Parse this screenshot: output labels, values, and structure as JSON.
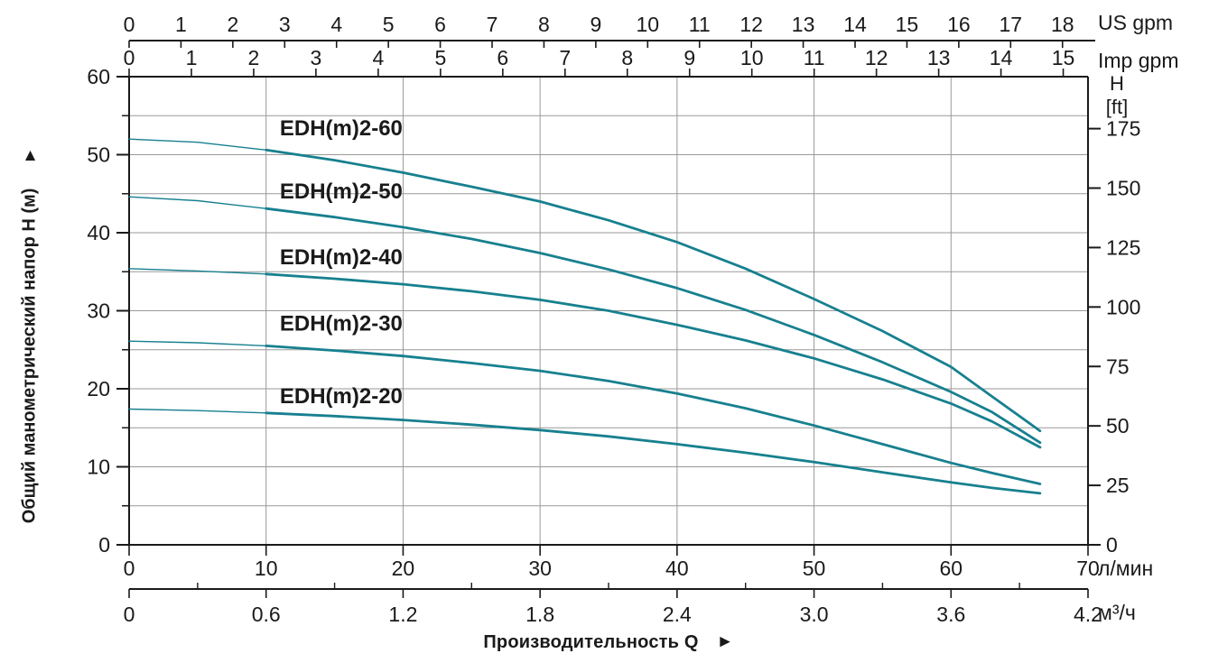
{
  "chart_data": {
    "type": "line",
    "xlabel": "Производительность Q",
    "xlabel_arrow": "►",
    "ylabel_left": "Общий манометрический напор H (м)",
    "ylabel_left_arrow": "▲",
    "axes": {
      "top_us": {
        "unit": "US gpm",
        "ticks": [
          0,
          1,
          2,
          3,
          4,
          5,
          6,
          7,
          8,
          9,
          10,
          11,
          12,
          13,
          14,
          15,
          16,
          17,
          18
        ],
        "lmin_per_unit": 3.78541
      },
      "top_imp": {
        "unit": "Imp gpm",
        "ticks": [
          0,
          1,
          2,
          3,
          4,
          5,
          6,
          7,
          8,
          9,
          10,
          11,
          12,
          13,
          14,
          15
        ],
        "lmin_per_unit": 4.54609
      },
      "left_m": {
        "ticks": [
          0,
          10,
          20,
          30,
          40,
          50,
          60
        ],
        "max": 60,
        "minor_step": 5
      },
      "right_ft": {
        "unit_line1": "H",
        "unit_line2": "[ft]",
        "ticks": [
          0,
          25,
          50,
          75,
          100,
          125,
          150,
          175
        ],
        "m_per_unit": 0.3048
      },
      "bottom_lmin": {
        "unit": "л/мин",
        "ticks": [
          0,
          10,
          20,
          30,
          40,
          50,
          60,
          70
        ],
        "max": 70
      },
      "bottom_m3h": {
        "unit": "м³/ч",
        "tick_labels": [
          "0",
          "0.6",
          "1.2",
          "1.8",
          "2.4",
          "3.0",
          "3.6",
          "4.2"
        ],
        "minor_step": 0.3,
        "max": 4.2,
        "lmin_per_unit": 16.6667
      }
    },
    "series": [
      {
        "name": "EDH(m)2-60",
        "label_pos": [
          11,
          53.4
        ],
        "points": [
          [
            0,
            52.0
          ],
          [
            5,
            51.6
          ],
          [
            10,
            50.6
          ],
          [
            15,
            49.3
          ],
          [
            20,
            47.7
          ],
          [
            25,
            45.9
          ],
          [
            30,
            44.0
          ],
          [
            35,
            41.6
          ],
          [
            40,
            38.8
          ],
          [
            45,
            35.4
          ],
          [
            50,
            31.5
          ],
          [
            55,
            27.4
          ],
          [
            60,
            22.8
          ],
          [
            63,
            19.0
          ],
          [
            66.5,
            14.6
          ]
        ]
      },
      {
        "name": "EDH(m)2-50",
        "label_pos": [
          11,
          45.3
        ],
        "points": [
          [
            0,
            44.6
          ],
          [
            5,
            44.1
          ],
          [
            10,
            43.1
          ],
          [
            15,
            42.0
          ],
          [
            20,
            40.7
          ],
          [
            25,
            39.2
          ],
          [
            30,
            37.4
          ],
          [
            35,
            35.3
          ],
          [
            40,
            32.9
          ],
          [
            45,
            30.1
          ],
          [
            50,
            26.9
          ],
          [
            55,
            23.4
          ],
          [
            60,
            19.6
          ],
          [
            63,
            17.0
          ],
          [
            66.5,
            13.1
          ]
        ]
      },
      {
        "name": "EDH(m)2-40",
        "label_pos": [
          11,
          36.9
        ],
        "points": [
          [
            0,
            35.4
          ],
          [
            5,
            35.1
          ],
          [
            10,
            34.7
          ],
          [
            15,
            34.1
          ],
          [
            20,
            33.4
          ],
          [
            25,
            32.5
          ],
          [
            30,
            31.4
          ],
          [
            35,
            30.0
          ],
          [
            40,
            28.2
          ],
          [
            45,
            26.2
          ],
          [
            50,
            23.9
          ],
          [
            55,
            21.2
          ],
          [
            60,
            18.1
          ],
          [
            63,
            15.8
          ],
          [
            66.5,
            12.5
          ]
        ]
      },
      {
        "name": "EDH(m)2-30",
        "label_pos": [
          11,
          28.4
        ],
        "points": [
          [
            0,
            26.1
          ],
          [
            5,
            25.9
          ],
          [
            10,
            25.5
          ],
          [
            15,
            24.9
          ],
          [
            20,
            24.2
          ],
          [
            25,
            23.3
          ],
          [
            30,
            22.3
          ],
          [
            35,
            21.0
          ],
          [
            40,
            19.4
          ],
          [
            45,
            17.5
          ],
          [
            50,
            15.3
          ],
          [
            55,
            12.9
          ],
          [
            60,
            10.5
          ],
          [
            63,
            9.2
          ],
          [
            66.5,
            7.8
          ]
        ]
      },
      {
        "name": "EDH(m)2-20",
        "label_pos": [
          11,
          19.1
        ],
        "points": [
          [
            0,
            17.4
          ],
          [
            5,
            17.2
          ],
          [
            10,
            16.9
          ],
          [
            15,
            16.5
          ],
          [
            20,
            16.0
          ],
          [
            25,
            15.4
          ],
          [
            30,
            14.7
          ],
          [
            35,
            13.9
          ],
          [
            40,
            12.9
          ],
          [
            45,
            11.8
          ],
          [
            50,
            10.6
          ],
          [
            55,
            9.3
          ],
          [
            60,
            8.0
          ],
          [
            63,
            7.3
          ],
          [
            66.5,
            6.6
          ]
        ]
      }
    ],
    "style": {
      "curve_color": "#17808F",
      "grid_color": "#999999",
      "axis_color": "#1a1a1a",
      "thin_until_lmin": 10
    }
  }
}
